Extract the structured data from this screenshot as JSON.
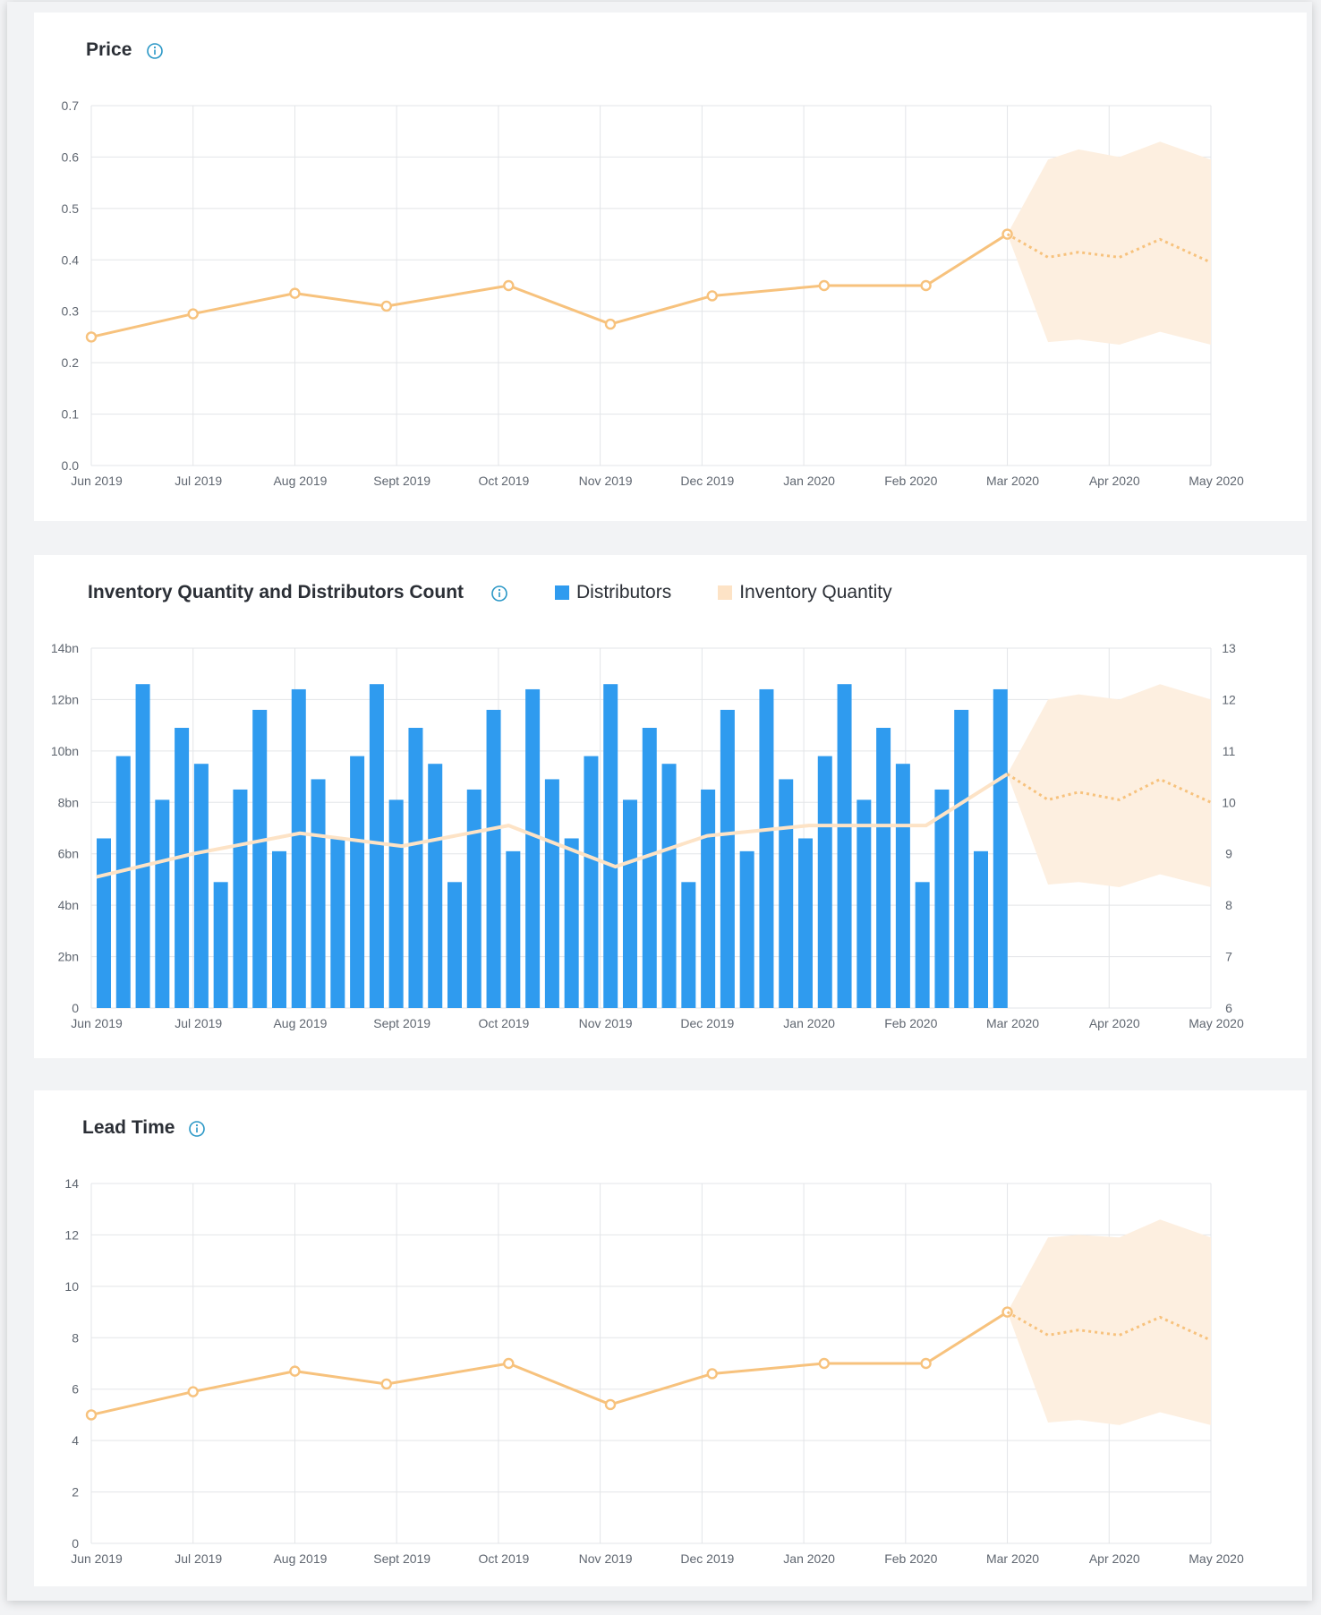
{
  "colors": {
    "accent_line": "#f7c27d",
    "band": "#fdefe0",
    "bars": "#2f9bef",
    "inventory_line": "#fde3c6",
    "info_icon": "#2a97c6",
    "grid": "#e3e5e8"
  },
  "icons": {
    "info": "info-circle-icon"
  },
  "chart_data": [
    {
      "type": "line",
      "title": "Price",
      "x_labels": [
        "Jun 2019",
        "Jul 2019",
        "Aug 2019",
        "Sept 2019",
        "Oct 2019",
        "Nov 2019",
        "Dec 2019",
        "Jan 2020",
        "Feb 2020",
        "Mar 2020",
        "Apr 2020",
        "May 2020"
      ],
      "y_ticks": [
        "0.0",
        "0.1",
        "0.2",
        "0.3",
        "0.4",
        "0.5",
        "0.6",
        "0.7"
      ],
      "ylim": [
        0,
        0.7
      ],
      "grid": true,
      "series": [
        {
          "style": "solid-with-markers",
          "x": [
            0,
            1,
            2,
            2.9,
            4.1,
            5.1,
            6.1,
            7.2,
            8.2,
            9.0
          ],
          "y": [
            0.25,
            0.295,
            0.335,
            0.31,
            0.35,
            0.275,
            0.33,
            0.35,
            0.35,
            0.45
          ]
        },
        {
          "style": "forecast-dotted",
          "x": [
            9.0,
            9.4,
            9.7,
            10.1,
            10.5,
            11.0
          ],
          "y": [
            0.45,
            0.405,
            0.415,
            0.405,
            0.44,
            0.395
          ]
        }
      ],
      "forecast_band": {
        "x": [
          9.0,
          9.4,
          9.7,
          10.1,
          10.5,
          11.0
        ],
        "upper": [
          0.45,
          0.595,
          0.615,
          0.6,
          0.63,
          0.595
        ],
        "lower": [
          0.45,
          0.24,
          0.245,
          0.235,
          0.26,
          0.235
        ]
      }
    },
    {
      "type": "bar",
      "title": "Inventory Quantity and Distributors Count",
      "legend": [
        "Distributors",
        "Inventory Quantity"
      ],
      "legend_position": "top",
      "x_labels": [
        "Jun 2019",
        "Jul 2019",
        "Aug 2019",
        "Sept 2019",
        "Oct 2019",
        "Nov 2019",
        "Dec 2019",
        "Jan 2020",
        "Feb 2020",
        "Mar 2020",
        "Apr 2020",
        "May 2020"
      ],
      "y_ticks_left": [
        "0",
        "2bn",
        "4bn",
        "6bn",
        "8bn",
        "10bn",
        "12bn",
        "14bn"
      ],
      "y_ticks_right": [
        "6",
        "7",
        "8",
        "9",
        "10",
        "11",
        "12",
        "13"
      ],
      "ylim_left": [
        0,
        14
      ],
      "ylim_right": [
        6,
        13
      ],
      "grid": true,
      "bar_values_bn": [
        6.6,
        9.8,
        12.6,
        8.1,
        10.9,
        9.5,
        4.9,
        8.5,
        11.6,
        6.1,
        12.4,
        8.9,
        6.6,
        9.8,
        12.6,
        8.1,
        10.9,
        9.5,
        4.9,
        8.5,
        11.6,
        6.1,
        12.4,
        8.9,
        6.6,
        9.8,
        12.6,
        8.1,
        10.9,
        9.5,
        4.9,
        8.5,
        11.6,
        6.1,
        12.4,
        8.9,
        6.6,
        9.8,
        12.6,
        8.1,
        10.9,
        9.5,
        4.9,
        8.5,
        11.6,
        6.1,
        12.4
      ],
      "series": [
        {
          "name": "Inventory Quantity",
          "style": "solid",
          "x": [
            0.05,
            1,
            2.05,
            3.05,
            4.1,
            5.15,
            6.05,
            7.05,
            8.2,
            9.0
          ],
          "y": [
            8.55,
            9.0,
            9.4,
            9.15,
            9.55,
            8.75,
            9.35,
            9.55,
            9.55,
            10.55
          ]
        },
        {
          "name": "Inventory Quantity",
          "style": "forecast-dotted",
          "x": [
            9.0,
            9.4,
            9.7,
            10.1,
            10.5,
            11.0
          ],
          "y": [
            10.55,
            10.05,
            10.2,
            10.05,
            10.45,
            10.0
          ]
        }
      ],
      "forecast_band": {
        "x": [
          9.0,
          9.4,
          9.7,
          10.1,
          10.5,
          11.0
        ],
        "upper": [
          10.55,
          12.0,
          12.1,
          12.0,
          12.3,
          12.0
        ],
        "lower": [
          10.55,
          8.4,
          8.45,
          8.35,
          8.6,
          8.35
        ]
      }
    },
    {
      "type": "line",
      "title": "Lead Time",
      "x_labels": [
        "Jun 2019",
        "Jul 2019",
        "Aug 2019",
        "Sept 2019",
        "Oct 2019",
        "Nov 2019",
        "Dec 2019",
        "Jan 2020",
        "Feb 2020",
        "Mar 2020",
        "Apr 2020",
        "May 2020"
      ],
      "y_ticks": [
        "0",
        "2",
        "4",
        "6",
        "8",
        "10",
        "12",
        "14"
      ],
      "ylim": [
        0,
        14
      ],
      "grid": true,
      "series": [
        {
          "style": "solid-with-markers",
          "x": [
            0,
            1,
            2,
            2.9,
            4.1,
            5.1,
            6.1,
            7.2,
            8.2,
            9.0
          ],
          "y": [
            5.0,
            5.9,
            6.7,
            6.2,
            7.0,
            5.4,
            6.6,
            7.0,
            7.0,
            9.0
          ]
        },
        {
          "style": "forecast-dotted",
          "x": [
            9.0,
            9.4,
            9.7,
            10.1,
            10.5,
            11.0
          ],
          "y": [
            9.0,
            8.1,
            8.3,
            8.1,
            8.8,
            7.9
          ]
        }
      ],
      "forecast_band": {
        "x": [
          9.0,
          9.4,
          9.7,
          10.1,
          10.5,
          11.0
        ],
        "upper": [
          9.0,
          11.9,
          12.0,
          11.9,
          12.6,
          11.9
        ],
        "lower": [
          9.0,
          4.7,
          4.8,
          4.6,
          5.1,
          4.6
        ]
      }
    }
  ]
}
